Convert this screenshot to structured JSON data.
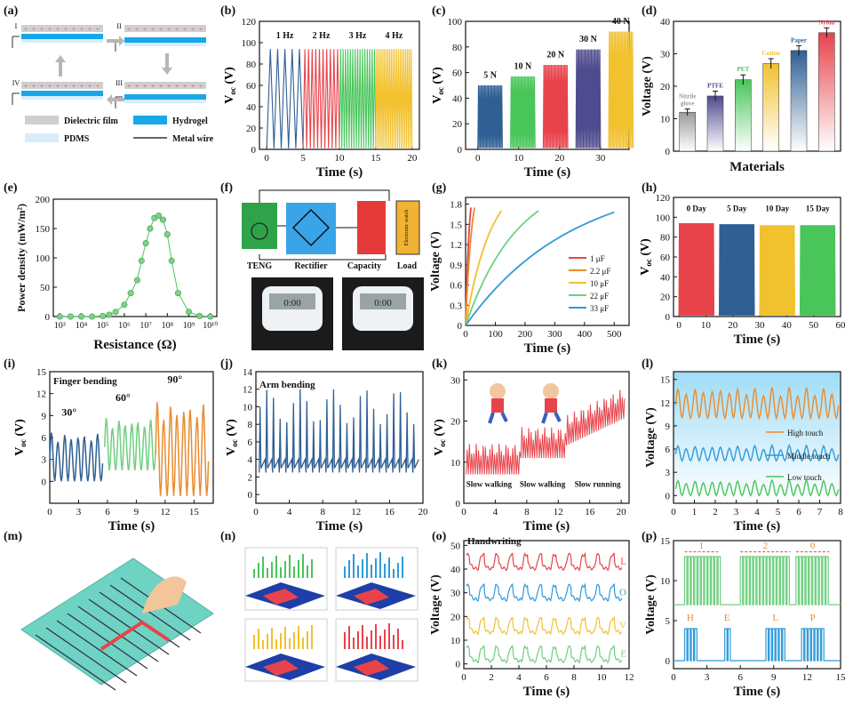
{
  "panel_letters": [
    "(a)",
    "(b)",
    "(c)",
    "(d)",
    "(e)",
    "(f)",
    "(g)",
    "(h)",
    "(i)",
    "(j)",
    "(k)",
    "(l)",
    "(m)",
    "(n)",
    "(o)",
    "(p)"
  ],
  "colors": {
    "blue": "#2f5f93",
    "red": "#e8434b",
    "green": "#49c55a",
    "yellow": "#f2c12e",
    "purple": "#4f4b8f",
    "gray": "#bdbdbd",
    "orange": "#e98b2f",
    "lightblue": "#2f9ad9",
    "lightgreen": "#6fcf80",
    "cyan": "#1eb4e6"
  },
  "panel_a": {
    "stages": [
      "I",
      "II",
      "III",
      "IV"
    ],
    "legend": [
      "Dielectric film",
      "Hydrogel",
      "PDMS",
      "Metal wire"
    ]
  },
  "panel_f": {
    "labels": [
      "TENG",
      "Rectifier",
      "Capacity",
      "Load"
    ],
    "watch_text": "Electronic watch"
  },
  "panel_m": {},
  "panel_n": {},
  "chart_data": [
    {
      "id": "b",
      "type": "line",
      "title": "",
      "xlabel": "Time (s)",
      "ylabel": "Voc (V)",
      "xlim": [
        -1,
        21
      ],
      "ylim": [
        0,
        120
      ],
      "xticks": [
        0,
        5,
        10,
        15,
        20
      ],
      "yticks": [
        0,
        20,
        40,
        60,
        80,
        100,
        120
      ],
      "series": [
        {
          "name": "1 Hz",
          "x_range": [
            0,
            5
          ],
          "peak": 94,
          "color": "#2f5f93"
        },
        {
          "name": "2 Hz",
          "x_range": [
            5,
            10
          ],
          "peak": 94,
          "color": "#e8434b"
        },
        {
          "name": "3 Hz",
          "x_range": [
            10,
            15
          ],
          "peak": 94,
          "color": "#49c55a"
        },
        {
          "name": "4 Hz",
          "x_range": [
            15,
            20
          ],
          "peak": 94,
          "color": "#f2c12e"
        }
      ]
    },
    {
      "id": "c",
      "type": "line",
      "xlabel": "Time (s)",
      "ylabel": "Voc (V)",
      "xlim": [
        -3,
        37
      ],
      "ylim": [
        0,
        100
      ],
      "xticks": [
        0,
        10,
        20,
        30
      ],
      "yticks": [
        0,
        20,
        40,
        60,
        80,
        100
      ],
      "series": [
        {
          "name": "5 N",
          "x_range": [
            0,
            6
          ],
          "peak": 50,
          "color": "#2f5f93"
        },
        {
          "name": "10 N",
          "x_range": [
            8,
            14
          ],
          "peak": 57,
          "color": "#49c55a"
        },
        {
          "name": "20 N",
          "x_range": [
            16,
            22
          ],
          "peak": 66,
          "color": "#e8434b"
        },
        {
          "name": "30 N",
          "x_range": [
            24,
            30
          ],
          "peak": 78,
          "color": "#4f4b8f"
        },
        {
          "name": "40 N",
          "x_range": [
            32,
            38
          ],
          "peak": 92,
          "color": "#f2c12e"
        }
      ]
    },
    {
      "id": "d",
      "type": "bar",
      "xlabel": "Materials",
      "ylabel": "Voltage (V)",
      "ylim": [
        0,
        40
      ],
      "yticks": [
        0,
        10,
        20,
        30,
        40
      ],
      "categories": [
        "Nitrile glove",
        "PTFE",
        "PET",
        "Cotton",
        "Paper",
        "Nylon"
      ],
      "values": [
        12,
        17,
        22,
        27,
        31,
        36.5
      ],
      "errors": [
        1,
        1.5,
        1.5,
        1.5,
        1.5,
        1.5
      ],
      "colors": [
        "#9a9a9a",
        "#4f4b8f",
        "#49c55a",
        "#f2c12e",
        "#2f5f93",
        "#e8434b"
      ]
    },
    {
      "id": "e",
      "type": "line",
      "xlabel": "Resistance (Ω)",
      "ylabel": "Power density (mW/m²)",
      "ylim": [
        0,
        200
      ],
      "yticks": [
        0,
        50,
        100,
        150,
        200
      ],
      "xticks": [
        "10³",
        "10⁴",
        "10⁵",
        "10⁶",
        "10⁷",
        "10⁸",
        "10⁹",
        "10¹⁰"
      ],
      "series": [
        {
          "name": "Power density",
          "color": "#49c55a",
          "x_log": [
            3,
            3.5,
            4,
            4.5,
            5,
            5.3,
            5.6,
            6,
            6.3,
            6.6,
            6.8,
            7,
            7.2,
            7.4,
            7.6,
            7.8,
            8,
            8.2,
            8.5,
            9,
            9.5,
            10
          ],
          "y": [
            0,
            0,
            0,
            0,
            1,
            3,
            8,
            20,
            40,
            62,
            95,
            125,
            150,
            168,
            172,
            165,
            140,
            95,
            40,
            8,
            1,
            0
          ]
        }
      ]
    },
    {
      "id": "g",
      "type": "line",
      "xlabel": "Time (s)",
      "ylabel": "Voltage (V)",
      "xlim": [
        0,
        550
      ],
      "ylim": [
        0,
        1.9
      ],
      "xticks": [
        0,
        100,
        200,
        300,
        400,
        500
      ],
      "yticks": [
        0,
        0.3,
        0.6,
        0.9,
        1.2,
        1.5,
        1.8
      ],
      "series": [
        {
          "name": "1 μF",
          "color": "#e8434b",
          "x": [
            0,
            18
          ],
          "y": [
            0,
            1.75
          ]
        },
        {
          "name": "2.2 μF",
          "color": "#e98b2f",
          "x": [
            0,
            30
          ],
          "y": [
            0,
            1.75
          ]
        },
        {
          "name": "10 μF",
          "color": "#f2c12e",
          "x": [
            0,
            120
          ],
          "y": [
            0,
            1.7
          ]
        },
        {
          "name": "22 μF",
          "color": "#6fcf80",
          "x": [
            0,
            245
          ],
          "y": [
            0,
            1.7
          ]
        },
        {
          "name": "33 μF",
          "color": "#2f9ad9",
          "x": [
            0,
            500
          ],
          "y": [
            0,
            1.68
          ]
        }
      ]
    },
    {
      "id": "h",
      "type": "bar",
      "xlabel": "Time (s)",
      "ylabel": "Voc (V)",
      "xlim": [
        -2,
        60
      ],
      "ylim": [
        0,
        120
      ],
      "xticks": [
        0,
        10,
        20,
        30,
        40,
        50,
        60
      ],
      "yticks": [
        0,
        20,
        40,
        60,
        80,
        100,
        120
      ],
      "series": [
        {
          "name": "0 Day",
          "x_range": [
            0,
            13
          ],
          "peak": 94,
          "color": "#e8434b"
        },
        {
          "name": "5 Day",
          "x_range": [
            15,
            28
          ],
          "peak": 93,
          "color": "#2f5f93"
        },
        {
          "name": "10 Day",
          "x_range": [
            30,
            43
          ],
          "peak": 92,
          "color": "#f2c12e"
        },
        {
          "name": "15 Day",
          "x_range": [
            45,
            58
          ],
          "peak": 92,
          "color": "#49c55a"
        }
      ]
    },
    {
      "id": "i",
      "type": "line",
      "annotation": "Finger bending",
      "xlabel": "Time (s)",
      "ylabel": "Voc (V)",
      "xlim": [
        0,
        17
      ],
      "ylim": [
        -3,
        15
      ],
      "xticks": [
        0,
        3,
        6,
        9,
        12,
        15
      ],
      "yticks": [
        0,
        3,
        6,
        9,
        12,
        15
      ],
      "series": [
        {
          "name": "30°",
          "x_range": [
            0,
            5.5
          ],
          "low": 0,
          "high": 7,
          "color": "#2f5f93"
        },
        {
          "name": "60°",
          "x_range": [
            5.7,
            11
          ],
          "low": 1.5,
          "high": 9,
          "color": "#6fcf80"
        },
        {
          "name": "90°",
          "x_range": [
            11,
            16.5
          ],
          "low": -2,
          "high": 11.5,
          "color": "#e98b2f"
        }
      ]
    },
    {
      "id": "j",
      "type": "line",
      "annotation": "Arm bending",
      "xlabel": "Time (s)",
      "ylabel": "Voc (V)",
      "xlim": [
        0,
        20
      ],
      "ylim": [
        -1,
        14
      ],
      "xticks": [
        0,
        4,
        8,
        12,
        16,
        20
      ],
      "yticks": [
        0,
        2,
        4,
        6,
        8,
        10,
        12,
        14
      ],
      "series": [
        {
          "name": "Arm bending",
          "color": "#2f5f93",
          "low": 2,
          "high": 12
        }
      ]
    },
    {
      "id": "k",
      "type": "line",
      "xlabel": "Time (s)",
      "ylabel": "Voc (V)",
      "xlim": [
        0,
        21
      ],
      "ylim": [
        0,
        32
      ],
      "xticks": [
        0,
        4,
        8,
        12,
        16,
        20
      ],
      "yticks": [
        0,
        10,
        20,
        30
      ],
      "labels": [
        "Slow walking",
        "Slow walking",
        "Slow running"
      ],
      "series": [
        {
          "name": "Walking",
          "color": "#e8434b"
        }
      ]
    },
    {
      "id": "l",
      "type": "line",
      "xlabel": "Time (s)",
      "ylabel": "Voltage (V)",
      "xlim": [
        0,
        8
      ],
      "ylim": [
        -1,
        16
      ],
      "xticks": [
        0,
        1,
        2,
        3,
        4,
        5,
        6,
        7,
        8
      ],
      "yticks": [
        0,
        3,
        6,
        9,
        12,
        15
      ],
      "series": [
        {
          "name": "High touch",
          "color": "#e98b2f",
          "base": 10,
          "amp": 4
        },
        {
          "name": "Middle touch",
          "color": "#2f9ad9",
          "base": 4.5,
          "amp": 2
        },
        {
          "name": "Low touch",
          "color": "#49c55a",
          "base": 0,
          "amp": 2
        }
      ]
    },
    {
      "id": "o",
      "type": "line",
      "annotation": "Handwriting",
      "xlabel": "Time (s)",
      "ylabel": "Voltage (V)",
      "xlim": [
        0,
        12
      ],
      "ylim": [
        -2,
        52
      ],
      "xticks": [
        0,
        2,
        4,
        6,
        8,
        10,
        12
      ],
      "yticks": [
        0,
        10,
        20,
        30,
        40,
        50
      ],
      "series": [
        {
          "name": "L",
          "color": "#e8434b",
          "base": 40
        },
        {
          "name": "O",
          "color": "#2f9ad9",
          "base": 27
        },
        {
          "name": "V",
          "color": "#f2c12e",
          "base": 13
        },
        {
          "name": "E",
          "color": "#6fcf80",
          "base": 1
        }
      ]
    },
    {
      "id": "p",
      "type": "line",
      "xlabel": "Time (s)",
      "ylabel": "Voltage (V)",
      "xlim": [
        0,
        15
      ],
      "ylim": [
        -1,
        15
      ],
      "xticks": [
        0,
        3,
        6,
        9,
        12,
        15
      ],
      "yticks": [
        0,
        5,
        10,
        15
      ],
      "labels_top": [
        "1",
        "2",
        "0"
      ],
      "labels_bottom": [
        "H",
        "E",
        "L",
        "P"
      ],
      "series": [
        {
          "name": "Digits",
          "color": "#6fcf80"
        },
        {
          "name": "Letters",
          "color": "#2f9ad9"
        }
      ]
    }
  ]
}
